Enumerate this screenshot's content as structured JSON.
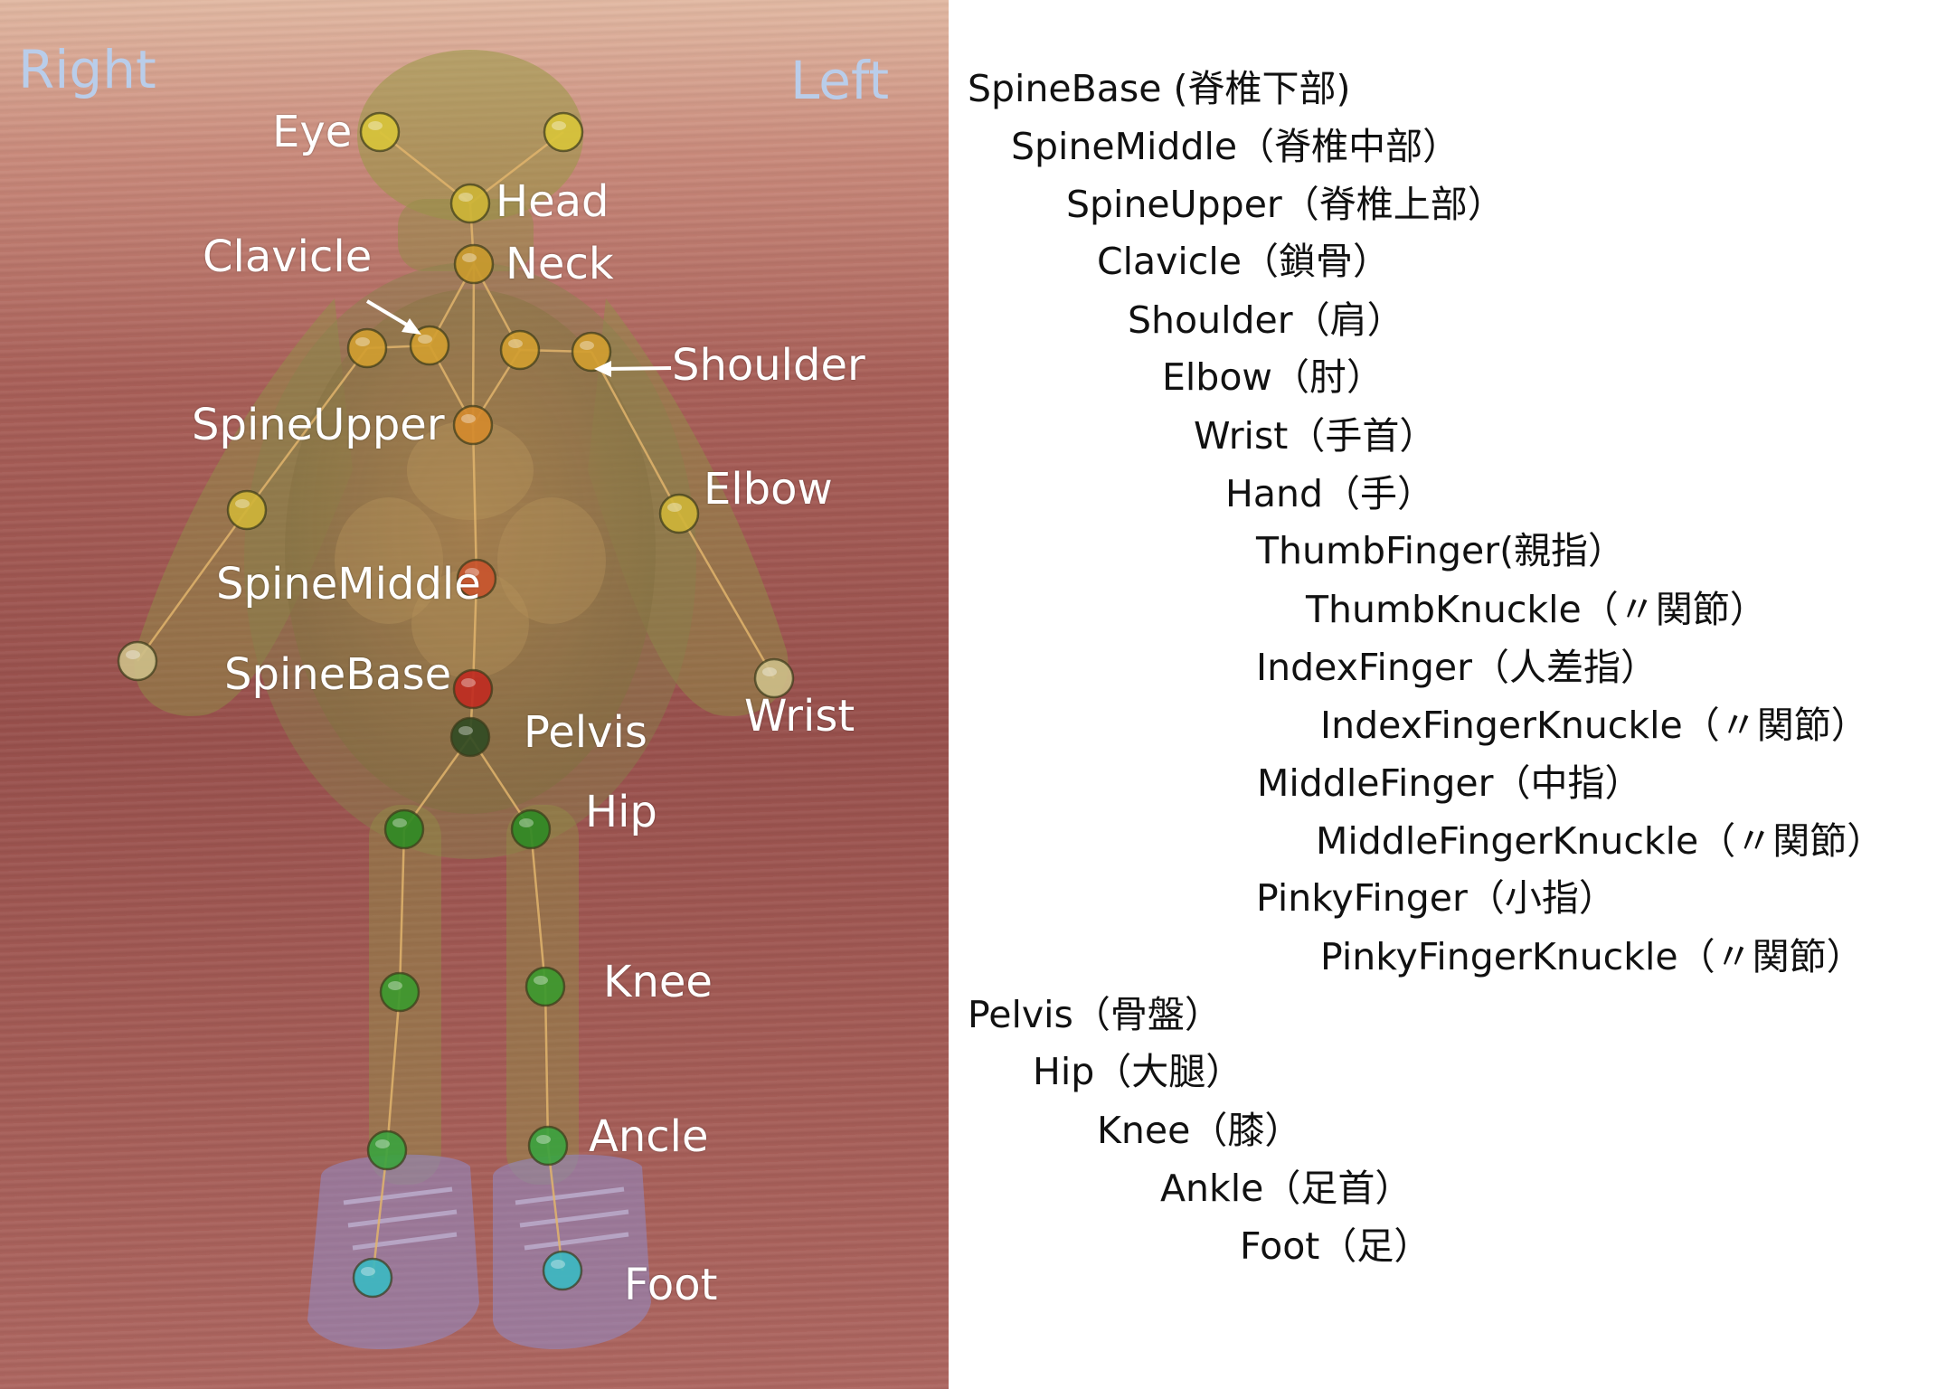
{
  "scene": {
    "side_labels": {
      "right": "Right",
      "left": "Left"
    },
    "joint_labels": {
      "eye": "Eye",
      "head": "Head",
      "clavicle": "Clavicle",
      "neck": "Neck",
      "shoulder": "Shoulder",
      "spine_upper": "SpineUpper",
      "elbow": "Elbow",
      "spine_middle": "SpineMiddle",
      "spine_base": "SpineBase",
      "pelvis": "Pelvis",
      "wrist": "Wrist",
      "hip": "Hip",
      "knee": "Knee",
      "ancle": "Ancle",
      "foot": "Foot"
    },
    "colors": {
      "eye": "#d8c43a",
      "head": "#cdb536",
      "neck": "#c99a2c",
      "shoulder": "#d19e30",
      "spine_upper": "#d4892c",
      "spine_middle": "#c9532c",
      "spine_base": "#c02a20",
      "pelvis": "#2f4a22",
      "hip": "#2e8a24",
      "knee": "#3a9a2e",
      "ankle": "#3aa33e",
      "foot": "#3ab9c2",
      "elbow": "#cfb538",
      "wrist": "#cdbf88"
    }
  },
  "hierarchy": [
    "SpineBase (脊椎下部)",
    "SpineMiddle（脊椎中部）",
    "SpineUpper（脊椎上部）",
    "Clavicle（鎖骨）",
    "Shoulder（肩）",
    "Elbow（肘）",
    "Wrist（手首）",
    "Hand（手）",
    "ThumbFinger(親指）",
    "ThumbKnuckle（〃関節）",
    "IndexFinger（人差指）",
    "IndexFingerKnuckle（〃関節）",
    "MiddleFinger（中指）",
    "MiddleFingerKnuckle（〃関節）",
    "PinkyFinger（小指）",
    "PinkyFingerKnuckle（〃関節）",
    "Pelvis（骨盤）",
    "Hip（大腿）",
    "Knee（膝）",
    "Ankle（足首）",
    "Foot（足）"
  ]
}
